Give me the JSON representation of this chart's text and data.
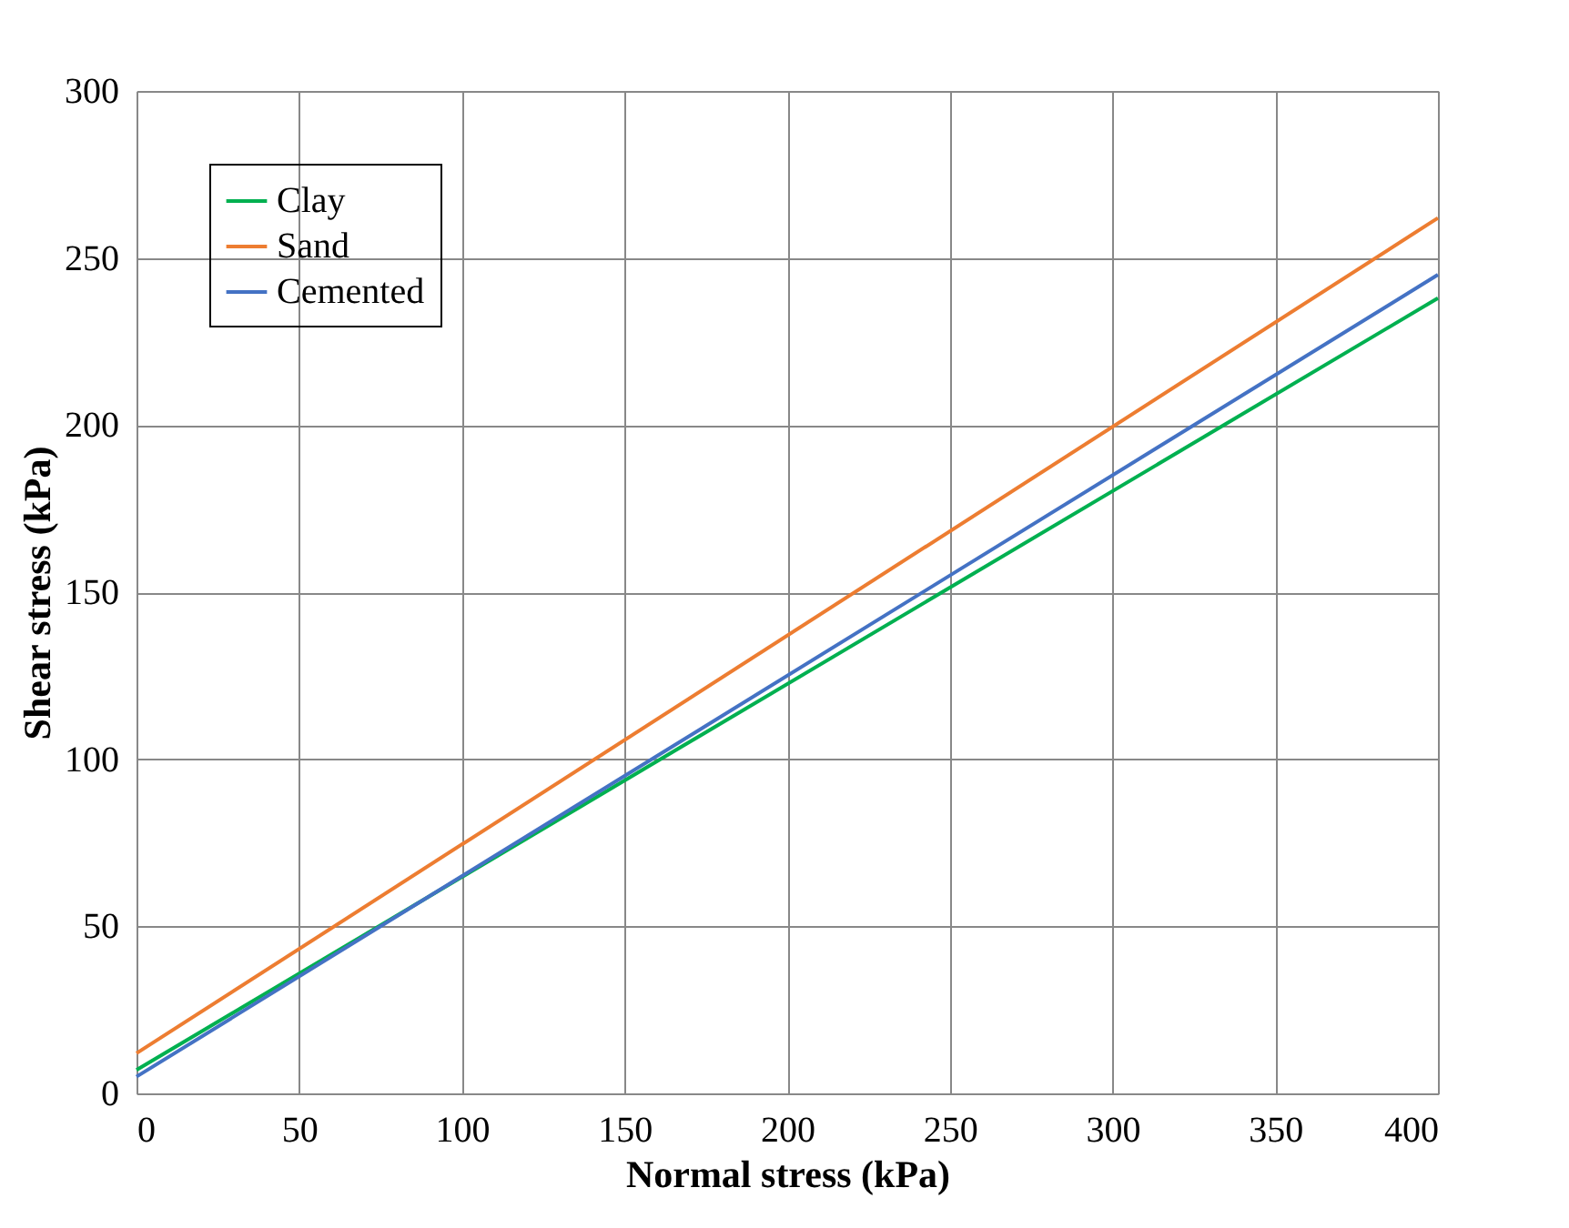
{
  "chart_data": {
    "type": "line",
    "xlabel": "Normal stress (kPa)",
    "ylabel": "Shear stress (kPa)",
    "x": [
      0,
      400
    ],
    "series": [
      {
        "name": "Clay",
        "color": "#00b050",
        "values": [
          7,
          238
        ]
      },
      {
        "name": "Sand",
        "color": "#ed7d31",
        "values": [
          12,
          262
        ]
      },
      {
        "name": "Cemented",
        "color": "#4472c4",
        "values": [
          5,
          245
        ]
      }
    ],
    "xlim": [
      0,
      400
    ],
    "xticks": [
      0,
      50,
      100,
      150,
      200,
      250,
      300,
      350,
      400
    ],
    "ylim": [
      0,
      300
    ],
    "yticks": [
      0,
      50,
      100,
      150,
      200,
      250,
      300
    ],
    "grid": true,
    "legend": "top left",
    "marker": "none",
    "line_style": "solid"
  }
}
